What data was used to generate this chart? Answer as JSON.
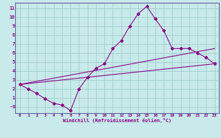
{
  "xlabel": "Windchill (Refroidissement éolien,°C)",
  "bg_color": "#c8eaea",
  "grid_color": "#a0cccc",
  "line_color": "#880088",
  "spine_color": "#6060a0",
  "xlim": [
    -0.5,
    23.5
  ],
  "ylim": [
    -0.7,
    11.6
  ],
  "xticks": [
    0,
    1,
    2,
    3,
    4,
    5,
    6,
    7,
    8,
    9,
    10,
    11,
    12,
    13,
    14,
    15,
    16,
    17,
    18,
    19,
    20,
    21,
    22,
    23
  ],
  "yticks": [
    0,
    1,
    2,
    3,
    4,
    5,
    6,
    7,
    8,
    9,
    10,
    11
  ],
  "line1_x": [
    0,
    1,
    2,
    3,
    4,
    5,
    6,
    7,
    8,
    9,
    10,
    11,
    12,
    13,
    14,
    15,
    16,
    17,
    18,
    19,
    20,
    21,
    22,
    23
  ],
  "line1_y": [
    2.5,
    2.0,
    1.5,
    0.9,
    0.4,
    0.2,
    -0.4,
    2.0,
    3.3,
    4.3,
    4.8,
    6.5,
    7.4,
    9.0,
    10.4,
    11.2,
    9.8,
    8.5,
    6.5,
    6.5,
    6.5,
    6.0,
    5.5,
    4.8
  ],
  "line2_x": [
    0,
    23
  ],
  "line2_y": [
    2.5,
    4.8
  ],
  "line3_x": [
    0,
    23
  ],
  "line3_y": [
    2.5,
    6.5
  ]
}
